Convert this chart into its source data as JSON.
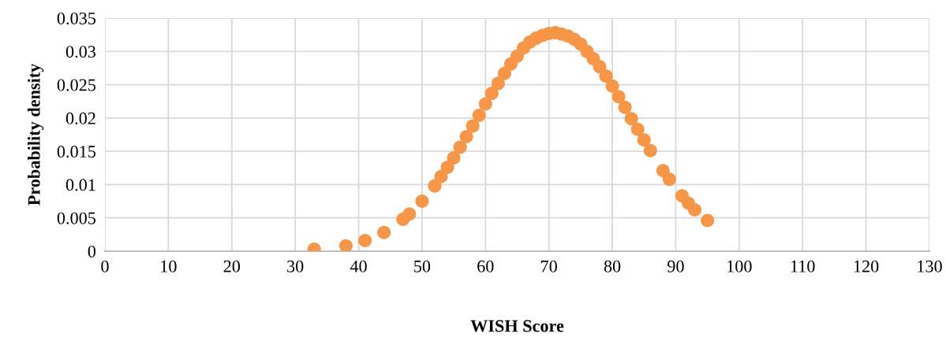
{
  "chart_data": {
    "type": "scatter",
    "xlabel": "WISH Score",
    "ylabel": "Probability density",
    "x": [
      33,
      38,
      41,
      44,
      47,
      48,
      50,
      52,
      53,
      54,
      55,
      56,
      57,
      58,
      59,
      60,
      61,
      62,
      63,
      64,
      65,
      66,
      67,
      68,
      69,
      70,
      71,
      72,
      73,
      74,
      75,
      76,
      77,
      78,
      79,
      80,
      81,
      82,
      83,
      84,
      85,
      86,
      88,
      89,
      91,
      92,
      93,
      95
    ],
    "series": [
      {
        "color": "#f79646",
        "values": [
          0.0003,
          0.0008,
          0.0016,
          0.0028,
          0.0048,
          0.0056,
          0.0075,
          0.0098,
          0.0112,
          0.0126,
          0.014,
          0.0156,
          0.0172,
          0.0188,
          0.0204,
          0.0221,
          0.0237,
          0.0252,
          0.0267,
          0.0281,
          0.0293,
          0.0305,
          0.0314,
          0.032,
          0.0324,
          0.0327,
          0.0328,
          0.0326,
          0.0323,
          0.0318,
          0.0311,
          0.03,
          0.0289,
          0.0277,
          0.0263,
          0.0248,
          0.0232,
          0.0216,
          0.0199,
          0.0183,
          0.0167,
          0.0151,
          0.0121,
          0.0108,
          0.0083,
          0.0072,
          0.0062,
          0.0046
        ]
      }
    ],
    "xlim": [
      0,
      130
    ],
    "xticks": [
      0,
      10,
      20,
      30,
      40,
      50,
      60,
      70,
      80,
      90,
      100,
      110,
      120,
      130
    ],
    "ylim": [
      0,
      0.035
    ],
    "yticks": [
      {
        "value": 0,
        "label": "0"
      },
      {
        "value": 0.005,
        "label": "0.005"
      },
      {
        "value": 0.01,
        "label": "0.01"
      },
      {
        "value": 0.015,
        "label": "0.015"
      },
      {
        "value": 0.02,
        "label": "0.02"
      },
      {
        "value": 0.025,
        "label": "0.025"
      },
      {
        "value": 0.03,
        "label": "0.03"
      },
      {
        "value": 0.035,
        "label": "0.035"
      }
    ],
    "grid": true,
    "marker": "circle",
    "legend": false
  }
}
